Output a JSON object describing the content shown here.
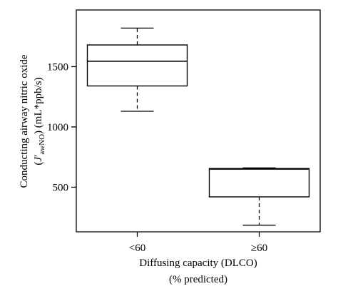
{
  "chart_data": {
    "type": "box",
    "categories": [
      "<60",
      "≥60"
    ],
    "boxes": [
      {
        "category": "<60",
        "whisker_low": 1130,
        "q1": 1340,
        "median": 1545,
        "q3": 1680,
        "whisker_high": 1820
      },
      {
        "category": "≥60",
        "whisker_low": 185,
        "q1": 420,
        "median": 650,
        "q3": 655,
        "whisker_high": 660
      }
    ],
    "ylim": [
      130,
      1970
    ],
    "yticks": [
      500,
      1000,
      1500
    ],
    "xlabel_line1": "Diffusing capacity (DLCO)",
    "xlabel_line2": "(% predicted)",
    "ylabel_line1": "Conducting airway nitric oxide",
    "ylabel_line2_paren_open": "(",
    "ylabel_line2_J": "J",
    "ylabel_line2_prime": "′",
    "ylabel_line2_sub": "awNO",
    "ylabel_line2_rest": ") (mL*ppb/s)",
    "grid": false,
    "legend": "none"
  }
}
